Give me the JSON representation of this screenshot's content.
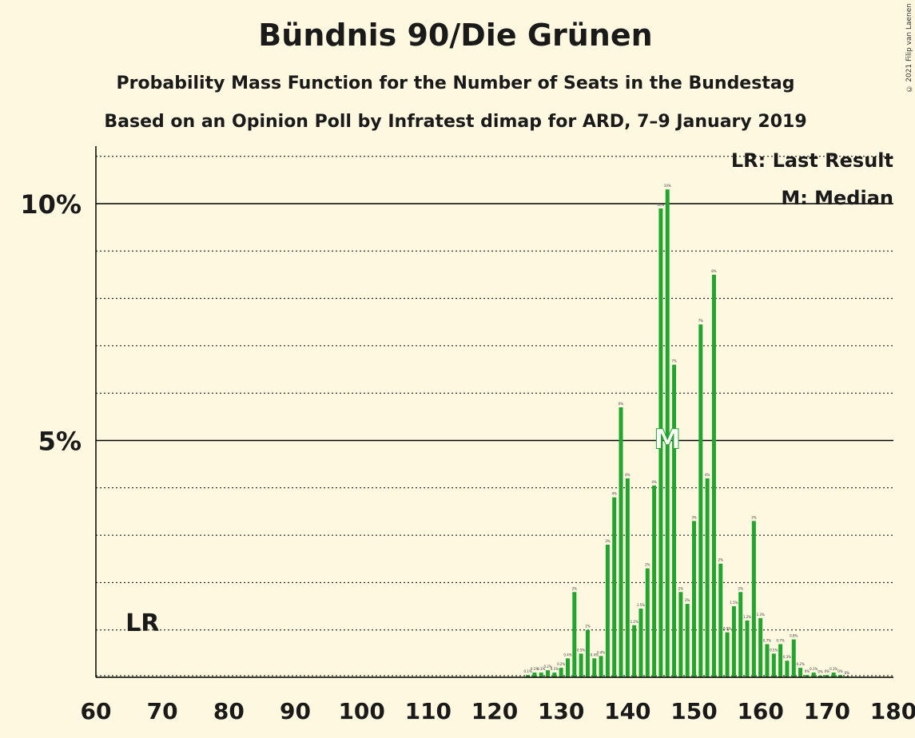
{
  "header": {
    "title": "Bündnis 90/Die Grünen",
    "subtitle": "Probability Mass Function for the Number of Seats in the Bundestag",
    "subtitle2": "Based on an Opinion Poll by Infratest dimap for ARD, 7–9 January 2019",
    "copyright": "© 2021 Filip van Laenen"
  },
  "legend": {
    "last_result": "LR: Last Result",
    "median": "M: Median"
  },
  "chart_data": {
    "type": "bar",
    "title": "Bündnis 90/Die Grünen",
    "xlim": [
      60,
      180
    ],
    "ylim": [
      0,
      11
    ],
    "x_ticks": [
      60,
      70,
      80,
      90,
      100,
      110,
      120,
      130,
      140,
      150,
      160,
      170,
      180
    ],
    "y_tick_labels": [
      {
        "value": 5,
        "label": "5%"
      },
      {
        "value": 10,
        "label": "10%"
      }
    ],
    "grid": "dotted every 1%, solid at 5% and 10%",
    "bar_color": "#22a52e",
    "last_result": {
      "seat": 67,
      "label": "LR"
    },
    "median": {
      "seat": 146,
      "label": "M"
    },
    "x": [
      125,
      126,
      127,
      128,
      129,
      130,
      131,
      132,
      133,
      134,
      135,
      136,
      137,
      138,
      139,
      140,
      141,
      142,
      143,
      144,
      145,
      146,
      147,
      148,
      149,
      150,
      151,
      152,
      153,
      154,
      155,
      156,
      157,
      158,
      159,
      160,
      161,
      162,
      163,
      164,
      165,
      166,
      167,
      168,
      169,
      170,
      171,
      172,
      173
    ],
    "values": [
      0.05,
      0.1,
      0.1,
      0.15,
      0.1,
      0.2,
      0.4,
      1.8,
      0.5,
      1.0,
      0.4,
      0.45,
      2.8,
      3.8,
      5.7,
      4.2,
      1.1,
      1.45,
      2.3,
      4.05,
      9.9,
      10.3,
      6.6,
      1.8,
      1.55,
      3.3,
      7.45,
      4.2,
      8.5,
      2.4,
      0.95,
      1.5,
      1.8,
      1.2,
      3.3,
      1.25,
      0.7,
      0.5,
      0.7,
      0.35,
      0.8,
      0.2,
      0.05,
      0.1,
      0.04,
      0.05,
      0.1,
      0.05,
      0.02
    ],
    "value_labels": [
      "0.1%",
      "0.1%",
      "0.1%",
      "0.2%",
      "0.1%",
      "0.2%",
      "0.4%",
      "2%",
      "0.5%",
      "1%",
      "0.4%",
      "0.4%",
      "3%",
      "4%",
      "6%",
      "4%",
      "1.1%",
      "1.5%",
      "2%",
      "4%",
      "10%",
      "10%",
      "7%",
      "2%",
      "2%",
      "3%",
      "7%",
      "4%",
      "8%",
      "2%",
      "0.9%",
      "1.5%",
      "2%",
      "1.2%",
      "3%",
      "1.3%",
      "0.7%",
      "0.5%",
      "0.7%",
      "0.3%",
      "0.8%",
      "0.2%",
      "0%",
      "0.1%",
      "0%",
      "0%",
      "0.1%",
      "0%",
      "0%"
    ]
  }
}
